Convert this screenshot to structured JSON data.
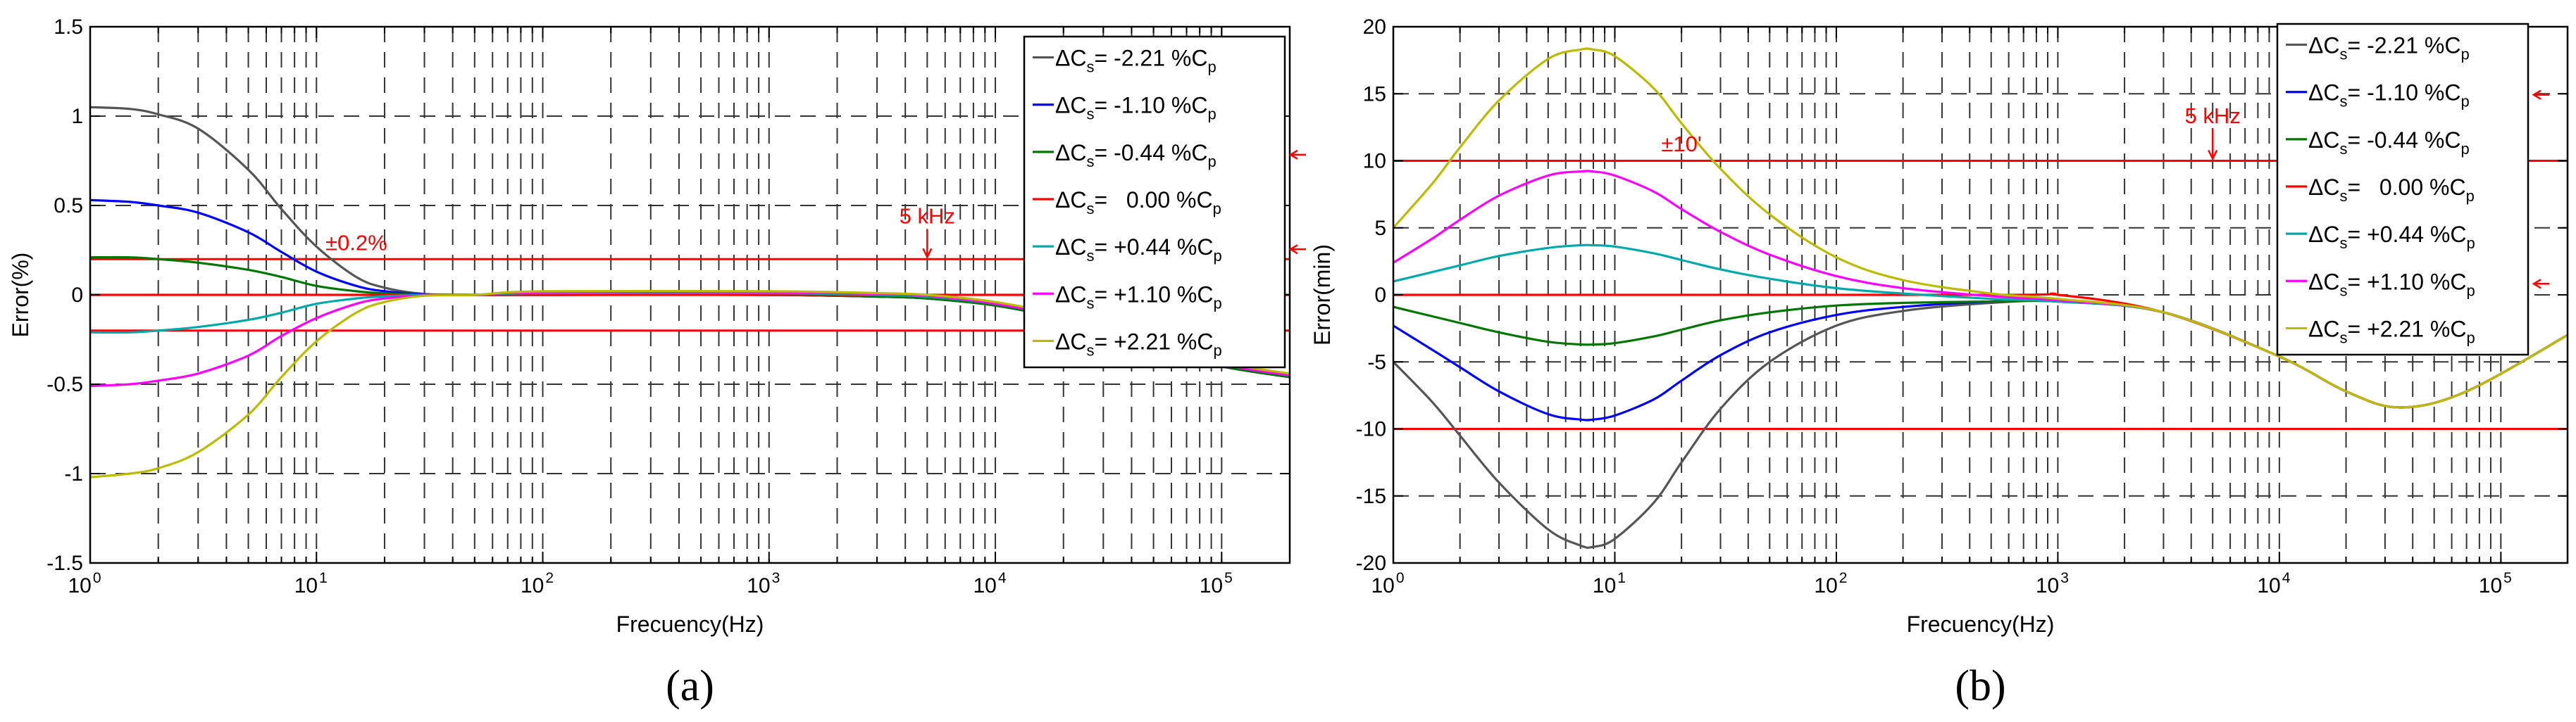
{
  "chart_data": [
    {
      "id": "a",
      "type": "line",
      "panel_label": "(a)",
      "xlabel": "Frecuency(Hz)",
      "ylabel": "Error(%)",
      "xscale": "log",
      "xlim": [
        1,
        200000
      ],
      "ylim": [
        -1.5,
        1.5
      ],
      "yticks": [
        -1.5,
        -1,
        -0.5,
        0,
        0.5,
        1,
        1.5
      ],
      "ytick_labels": [
        "-1.5",
        "-1",
        "-0.5",
        "0",
        "0.5",
        "1",
        "1.5"
      ],
      "xtick_base": "10",
      "xtick_exps": [
        "0",
        "1",
        "2",
        "3",
        "4",
        "5"
      ],
      "grid": true,
      "legend_position": "top-right",
      "series_prefix": "ΔC",
      "series_sub": "s",
      "series_eq": "= ",
      "series_unit": " %C",
      "series_unit_sub": "p",
      "series": [
        {
          "name": "-2.21",
          "color": "#555555",
          "x": [
            1,
            1.5,
            2,
            3,
            5,
            7,
            10,
            15,
            20,
            30,
            50,
            100,
            1000,
            3000,
            5000,
            10000,
            20000,
            50000,
            100000,
            200000
          ],
          "values": [
            1.05,
            1.04,
            1.01,
            0.93,
            0.7,
            0.48,
            0.27,
            0.1,
            0.04,
            0.005,
            0.0,
            0.0,
            0.0,
            -0.01,
            -0.02,
            -0.06,
            -0.14,
            -0.3,
            -0.4,
            -0.46
          ]
        },
        {
          "name": "-1.10",
          "color": "#0000ff",
          "x": [
            1,
            1.5,
            2,
            3,
            5,
            7,
            10,
            15,
            20,
            30,
            50,
            100,
            1000,
            3000,
            5000,
            10000,
            20000,
            50000,
            100000,
            200000
          ],
          "values": [
            0.53,
            0.52,
            0.5,
            0.46,
            0.35,
            0.24,
            0.13,
            0.05,
            0.02,
            0.003,
            0.0,
            0.0,
            0.0,
            -0.01,
            -0.02,
            -0.06,
            -0.14,
            -0.3,
            -0.4,
            -0.46
          ]
        },
        {
          "name": "-0.44",
          "color": "#007700",
          "x": [
            1,
            1.5,
            2,
            3,
            5,
            7,
            10,
            15,
            20,
            30,
            50,
            100,
            1000,
            3000,
            5000,
            10000,
            20000,
            50000,
            100000,
            200000
          ],
          "values": [
            0.21,
            0.21,
            0.2,
            0.18,
            0.14,
            0.1,
            0.05,
            0.02,
            0.008,
            0.001,
            0.0,
            0.0,
            0.0,
            -0.01,
            -0.02,
            -0.06,
            -0.14,
            -0.3,
            -0.4,
            -0.46
          ]
        },
        {
          "name": "  0.00",
          "color": "#ff0000",
          "x": [
            1,
            200000
          ],
          "values": [
            0.0,
            0.0
          ]
        },
        {
          "name": "+0.44",
          "color": "#00aaaa",
          "x": [
            1,
            1.5,
            2,
            3,
            5,
            7,
            10,
            15,
            20,
            30,
            50,
            100,
            1000,
            3000,
            5000,
            10000,
            20000,
            50000,
            100000,
            200000
          ],
          "values": [
            -0.21,
            -0.21,
            -0.2,
            -0.18,
            -0.14,
            -0.1,
            -0.05,
            -0.02,
            -0.008,
            -0.001,
            0.0,
            0.01,
            0.01,
            0.0,
            -0.01,
            -0.05,
            -0.13,
            -0.29,
            -0.39,
            -0.45
          ]
        },
        {
          "name": "+1.10",
          "color": "#ff00ff",
          "x": [
            1,
            1.5,
            2,
            3,
            5,
            7,
            10,
            15,
            20,
            30,
            50,
            100,
            1000,
            3000,
            5000,
            10000,
            20000,
            50000,
            100000,
            200000
          ],
          "values": [
            -0.51,
            -0.5,
            -0.48,
            -0.44,
            -0.34,
            -0.23,
            -0.13,
            -0.05,
            -0.02,
            -0.003,
            0.0,
            0.015,
            0.015,
            0.005,
            -0.005,
            -0.05,
            -0.13,
            -0.29,
            -0.39,
            -0.45
          ]
        },
        {
          "name": "+2.21",
          "color": "#bbbb00",
          "x": [
            1,
            1.5,
            2,
            3,
            5,
            7,
            10,
            15,
            20,
            30,
            50,
            100,
            1000,
            3000,
            5000,
            10000,
            20000,
            50000,
            100000,
            200000
          ],
          "values": [
            -1.02,
            -1.0,
            -0.97,
            -0.88,
            -0.67,
            -0.46,
            -0.26,
            -0.1,
            -0.04,
            -0.005,
            0.0,
            0.02,
            0.02,
            0.01,
            0.0,
            -0.04,
            -0.12,
            -0.28,
            -0.38,
            -0.44
          ]
        }
      ],
      "thresholds": [
        {
          "y": 0.2,
          "color": "#ff0000"
        },
        {
          "y": -0.2,
          "color": "#ff0000"
        }
      ],
      "annotations": [
        {
          "text": "±0.2%",
          "x": 15,
          "y": 0.25
        },
        {
          "text": "5 kHz",
          "x": 5000,
          "y": 0.4,
          "arrow_to": 0.2
        }
      ],
      "legend_arrows": [
        2,
        4
      ]
    },
    {
      "id": "b",
      "type": "line",
      "panel_label": "(b)",
      "xlabel": "Frecuency(Hz)",
      "ylabel": "Error(min)",
      "xscale": "log",
      "xlim": [
        1,
        200000
      ],
      "ylim": [
        -20,
        20
      ],
      "yticks": [
        -20,
        -15,
        -10,
        -5,
        0,
        5,
        10,
        15,
        20
      ],
      "ytick_labels": [
        "-20",
        "-15",
        "-10",
        "-5",
        "0",
        "5",
        "10",
        "15",
        "20"
      ],
      "xtick_base": "10",
      "xtick_exps": [
        "0",
        "1",
        "2",
        "3",
        "4",
        "5"
      ],
      "grid": true,
      "legend_position": "top-right",
      "series_prefix": "ΔC",
      "series_sub": "s",
      "series_eq": "= ",
      "series_unit": " %C",
      "series_unit_sub": "p",
      "series": [
        {
          "name": "-2.21",
          "color": "#555555",
          "x": [
            1,
            1.5,
            2,
            3,
            5,
            7,
            8,
            10,
            15,
            20,
            30,
            50,
            100,
            200,
            500,
            1000,
            3000,
            10000,
            20000,
            35000,
            70000,
            200000
          ],
          "values": [
            -5.0,
            -8.0,
            -10.5,
            -14.0,
            -17.5,
            -18.7,
            -18.8,
            -18.2,
            -15.5,
            -12.5,
            -8.5,
            -5.0,
            -2.3,
            -1.2,
            -0.6,
            -0.5,
            -1.3,
            -4.6,
            -7.2,
            -8.4,
            -7.2,
            -3.0
          ]
        },
        {
          "name": "-1.10",
          "color": "#0000ff",
          "x": [
            1,
            1.5,
            2,
            3,
            5,
            7,
            8,
            10,
            15,
            20,
            30,
            50,
            100,
            200,
            500,
            1000,
            3000,
            10000,
            20000,
            35000,
            70000,
            200000
          ],
          "values": [
            -2.3,
            -4.1,
            -5.4,
            -7.2,
            -8.9,
            -9.3,
            -9.3,
            -9.0,
            -7.8,
            -6.4,
            -4.5,
            -2.8,
            -1.5,
            -0.9,
            -0.5,
            -0.5,
            -1.3,
            -4.6,
            -7.2,
            -8.4,
            -7.2,
            -3.0
          ]
        },
        {
          "name": "-0.44",
          "color": "#007700",
          "x": [
            1,
            1.5,
            2,
            3,
            5,
            7,
            8,
            10,
            15,
            20,
            30,
            50,
            100,
            200,
            500,
            1000,
            3000,
            10000,
            20000,
            35000,
            70000,
            200000
          ],
          "values": [
            -0.9,
            -1.6,
            -2.1,
            -2.8,
            -3.5,
            -3.7,
            -3.7,
            -3.6,
            -3.1,
            -2.6,
            -1.9,
            -1.3,
            -0.8,
            -0.6,
            -0.5,
            -0.5,
            -1.3,
            -4.6,
            -7.2,
            -8.4,
            -7.2,
            -3.0
          ]
        },
        {
          "name": "  0.00",
          "color": "#ff0000",
          "x": [
            1,
            500,
            1000,
            3000,
            10000,
            20000,
            35000,
            70000,
            200000
          ],
          "values": [
            0.0,
            0.0,
            0.0,
            -1.3,
            -4.6,
            -7.2,
            -8.4,
            -7.2,
            -3.0
          ]
        },
        {
          "name": "+0.44",
          "color": "#00aaaa",
          "x": [
            1,
            1.5,
            2,
            3,
            5,
            7,
            8,
            10,
            15,
            20,
            30,
            50,
            100,
            200,
            500,
            1000,
            3000,
            10000,
            20000,
            35000,
            70000,
            200000
          ],
          "values": [
            1.0,
            1.7,
            2.2,
            2.9,
            3.5,
            3.7,
            3.7,
            3.6,
            3.1,
            2.6,
            1.9,
            1.2,
            0.5,
            0.1,
            -0.3,
            -0.5,
            -1.3,
            -4.6,
            -7.2,
            -8.4,
            -7.2,
            -3.0
          ]
        },
        {
          "name": "+1.10",
          "color": "#ff00ff",
          "x": [
            1,
            1.5,
            2,
            3,
            5,
            7,
            8,
            10,
            15,
            20,
            30,
            50,
            100,
            200,
            500,
            1000,
            3000,
            10000,
            20000,
            35000,
            70000,
            200000
          ],
          "values": [
            2.4,
            4.2,
            5.6,
            7.4,
            8.9,
            9.2,
            9.2,
            8.9,
            7.7,
            6.4,
            4.7,
            3.0,
            1.4,
            0.5,
            -0.1,
            -0.4,
            -1.3,
            -4.6,
            -7.2,
            -8.4,
            -7.2,
            -3.0
          ]
        },
        {
          "name": "+2.21",
          "color": "#bbbb00",
          "x": [
            1,
            1.5,
            2,
            3,
            5,
            7,
            8,
            10,
            15,
            20,
            30,
            50,
            100,
            200,
            500,
            1000,
            3000,
            10000,
            20000,
            35000,
            70000,
            200000
          ],
          "values": [
            5.0,
            8.3,
            11.0,
            14.5,
            17.6,
            18.3,
            18.3,
            17.8,
            15.4,
            12.8,
            9.4,
            6.0,
            2.8,
            1.1,
            0.1,
            -0.3,
            -1.3,
            -4.6,
            -7.2,
            -8.4,
            -7.2,
            -3.0
          ]
        }
      ],
      "thresholds": [
        {
          "y": 10,
          "color": "#ff0000"
        },
        {
          "y": -10,
          "color": "#ff0000"
        }
      ],
      "annotations": [
        {
          "text": "±10'",
          "x": 20,
          "y": 10.7
        },
        {
          "text": "5 kHz",
          "x": 5000,
          "y": 12.8,
          "arrow_to": 10
        }
      ],
      "legend_arrows": [
        1,
        5
      ]
    }
  ]
}
